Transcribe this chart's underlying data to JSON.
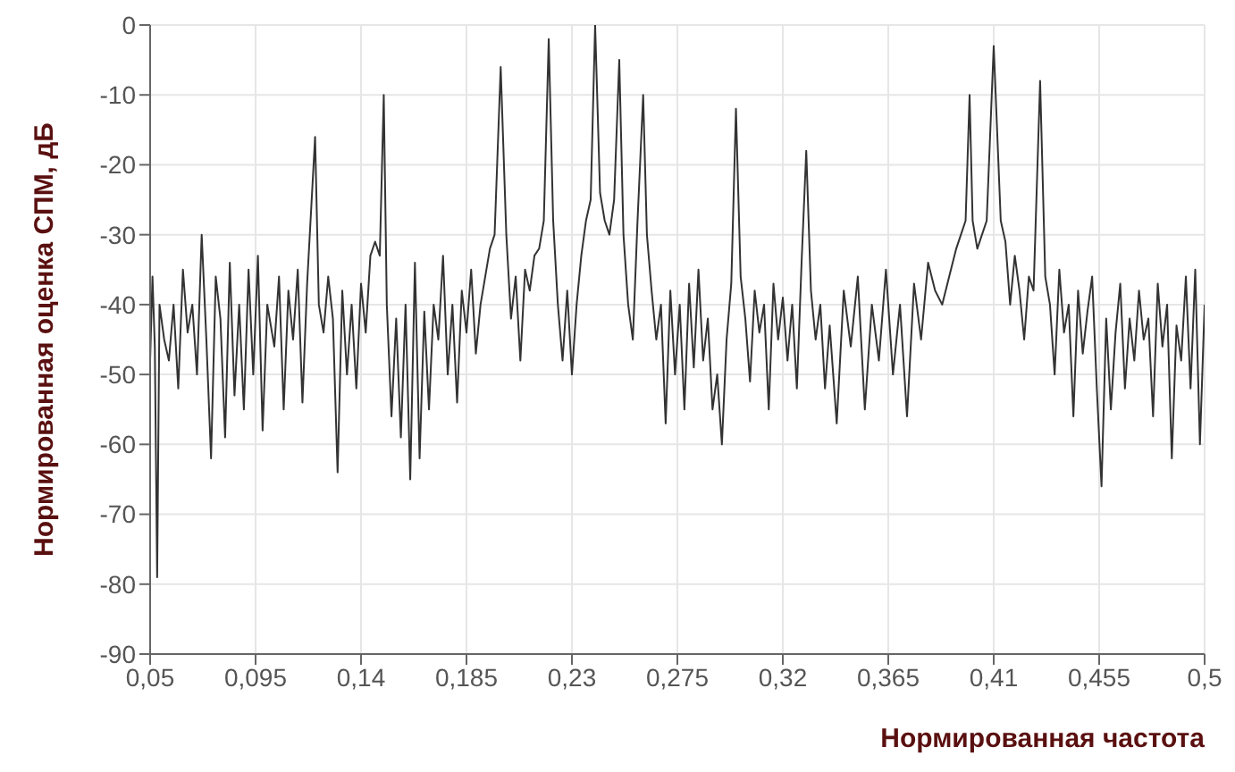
{
  "chart_data": {
    "type": "line",
    "xlabel": "Нормированная частота",
    "ylabel": "Нормированная оценка СПМ, дБ",
    "x": [
      0.05,
      0.051,
      0.052,
      0.053,
      0.054,
      0.056,
      0.058,
      0.06,
      0.062,
      0.064,
      0.066,
      0.068,
      0.07,
      0.072,
      0.074,
      0.076,
      0.078,
      0.08,
      0.082,
      0.084,
      0.086,
      0.088,
      0.09,
      0.092,
      0.094,
      0.096,
      0.098,
      0.1,
      0.103,
      0.105,
      0.107,
      0.109,
      0.111,
      0.113,
      0.115,
      0.117,
      0.1204,
      0.122,
      0.124,
      0.126,
      0.128,
      0.13,
      0.132,
      0.134,
      0.136,
      0.138,
      0.14,
      0.142,
      0.144,
      0.146,
      0.148,
      0.1497,
      0.151,
      0.153,
      0.155,
      0.157,
      0.159,
      0.161,
      0.163,
      0.165,
      0.167,
      0.169,
      0.171,
      0.173,
      0.175,
      0.177,
      0.179,
      0.181,
      0.183,
      0.185,
      0.187,
      0.189,
      0.191,
      0.193,
      0.195,
      0.197,
      0.1996,
      0.202,
      0.204,
      0.206,
      0.208,
      0.21,
      0.212,
      0.214,
      0.216,
      0.218,
      0.2201,
      0.222,
      0.224,
      0.226,
      0.228,
      0.23,
      0.232,
      0.234,
      0.236,
      0.238,
      0.2399,
      0.242,
      0.244,
      0.246,
      0.248,
      0.2502,
      0.252,
      0.254,
      0.256,
      0.258,
      0.2604,
      0.262,
      0.264,
      0.266,
      0.268,
      0.27,
      0.272,
      0.274,
      0.276,
      0.278,
      0.28,
      0.282,
      0.284,
      0.286,
      0.288,
      0.29,
      0.292,
      0.294,
      0.296,
      0.298,
      0.3,
      0.302,
      0.304,
      0.306,
      0.308,
      0.31,
      0.312,
      0.314,
      0.316,
      0.318,
      0.32,
      0.322,
      0.324,
      0.326,
      0.328,
      0.33,
      0.332,
      0.334,
      0.336,
      0.338,
      0.34,
      0.343,
      0.346,
      0.349,
      0.352,
      0.355,
      0.358,
      0.361,
      0.364,
      0.367,
      0.37,
      0.373,
      0.376,
      0.379,
      0.382,
      0.385,
      0.388,
      0.391,
      0.394,
      0.396,
      0.398,
      0.3997,
      0.401,
      0.403,
      0.405,
      0.407,
      0.41,
      0.413,
      0.415,
      0.417,
      0.419,
      0.421,
      0.423,
      0.425,
      0.427,
      0.4298,
      0.432,
      0.434,
      0.436,
      0.438,
      0.44,
      0.442,
      0.444,
      0.446,
      0.448,
      0.45,
      0.452,
      0.454,
      0.456,
      0.458,
      0.46,
      0.462,
      0.464,
      0.466,
      0.468,
      0.47,
      0.472,
      0.474,
      0.476,
      0.478,
      0.48,
      0.482,
      0.484,
      0.486,
      0.488,
      0.49,
      0.492,
      0.494,
      0.496,
      0.498,
      0.5
    ],
    "values": [
      -48,
      -36,
      -46,
      -79,
      -40,
      -45,
      -48,
      -40,
      -52,
      -35,
      -44,
      -40,
      -50,
      -30,
      -45,
      -62,
      -36,
      -42,
      -59,
      -34,
      -53,
      -40,
      -55,
      -35,
      -50,
      -33,
      -58,
      -40,
      -46,
      -36,
      -55,
      -38,
      -45,
      -35,
      -54,
      -37,
      -16,
      -40,
      -44,
      -36,
      -42,
      -64,
      -38,
      -50,
      -40,
      -52,
      -37,
      -44,
      -33,
      -31,
      -33,
      -10,
      -40,
      -56,
      -42,
      -59,
      -40,
      -65,
      -34,
      -62,
      -41,
      -55,
      -40,
      -45,
      -33,
      -50,
      -40,
      -54,
      -38,
      -44,
      -35,
      -47,
      -40,
      -36,
      -32,
      -30,
      -6,
      -30,
      -42,
      -36,
      -48,
      -35,
      -38,
      -33,
      -32,
      -28,
      -2,
      -28,
      -40,
      -48,
      -38,
      -50,
      -40,
      -33,
      -28,
      -25,
      0,
      -24,
      -28,
      -30,
      -25,
      -5,
      -30,
      -40,
      -45,
      -28,
      -10,
      -30,
      -38,
      -45,
      -40,
      -57,
      -38,
      -50,
      -40,
      -55,
      -37,
      -49,
      -35,
      -48,
      -42,
      -55,
      -50,
      -60,
      -45,
      -37,
      -12,
      -36,
      -42,
      -51,
      -38,
      -44,
      -40,
      -55,
      -37,
      -45,
      -39,
      -48,
      -40,
      -52,
      -34,
      -18,
      -38,
      -45,
      -40,
      -52,
      -43,
      -57,
      -38,
      -46,
      -36,
      -55,
      -40,
      -48,
      -35,
      -50,
      -40,
      -56,
      -37,
      -45,
      -34,
      -38,
      -40,
      -36,
      -32,
      -30,
      -28,
      -10,
      -28,
      -32,
      -30,
      -28,
      -3,
      -28,
      -31,
      -40,
      -33,
      -38,
      -45,
      -36,
      -38,
      -8,
      -36,
      -40,
      -50,
      -35,
      -44,
      -40,
      -56,
      -38,
      -47,
      -41,
      -36,
      -52,
      -66,
      -42,
      -55,
      -44,
      -37,
      -52,
      -42,
      -48,
      -38,
      -45,
      -42,
      -56,
      -37,
      -46,
      -40,
      -62,
      -43,
      -48,
      -36,
      -52,
      -35,
      -60,
      -40
    ],
    "color": "#333333",
    "xlim": [
      0.05,
      0.5
    ],
    "xticks": [
      {
        "value": 0.05,
        "label": "0,05"
      },
      {
        "value": 0.095,
        "label": "0,095"
      },
      {
        "value": 0.14,
        "label": "0,14"
      },
      {
        "value": 0.185,
        "label": "0,185"
      },
      {
        "value": 0.23,
        "label": "0,23"
      },
      {
        "value": 0.275,
        "label": "0,275"
      },
      {
        "value": 0.32,
        "label": "0,32"
      },
      {
        "value": 0.365,
        "label": "0,365"
      },
      {
        "value": 0.41,
        "label": "0,41"
      },
      {
        "value": 0.455,
        "label": "0,455"
      },
      {
        "value": 0.5,
        "label": "0,5"
      }
    ],
    "ylim": [
      -90,
      0
    ],
    "yticks": [
      -90,
      -80,
      -70,
      -60,
      -50,
      -40,
      -30,
      -20,
      -10,
      0
    ],
    "grid": true,
    "marker": "none",
    "line_style": "solid"
  }
}
